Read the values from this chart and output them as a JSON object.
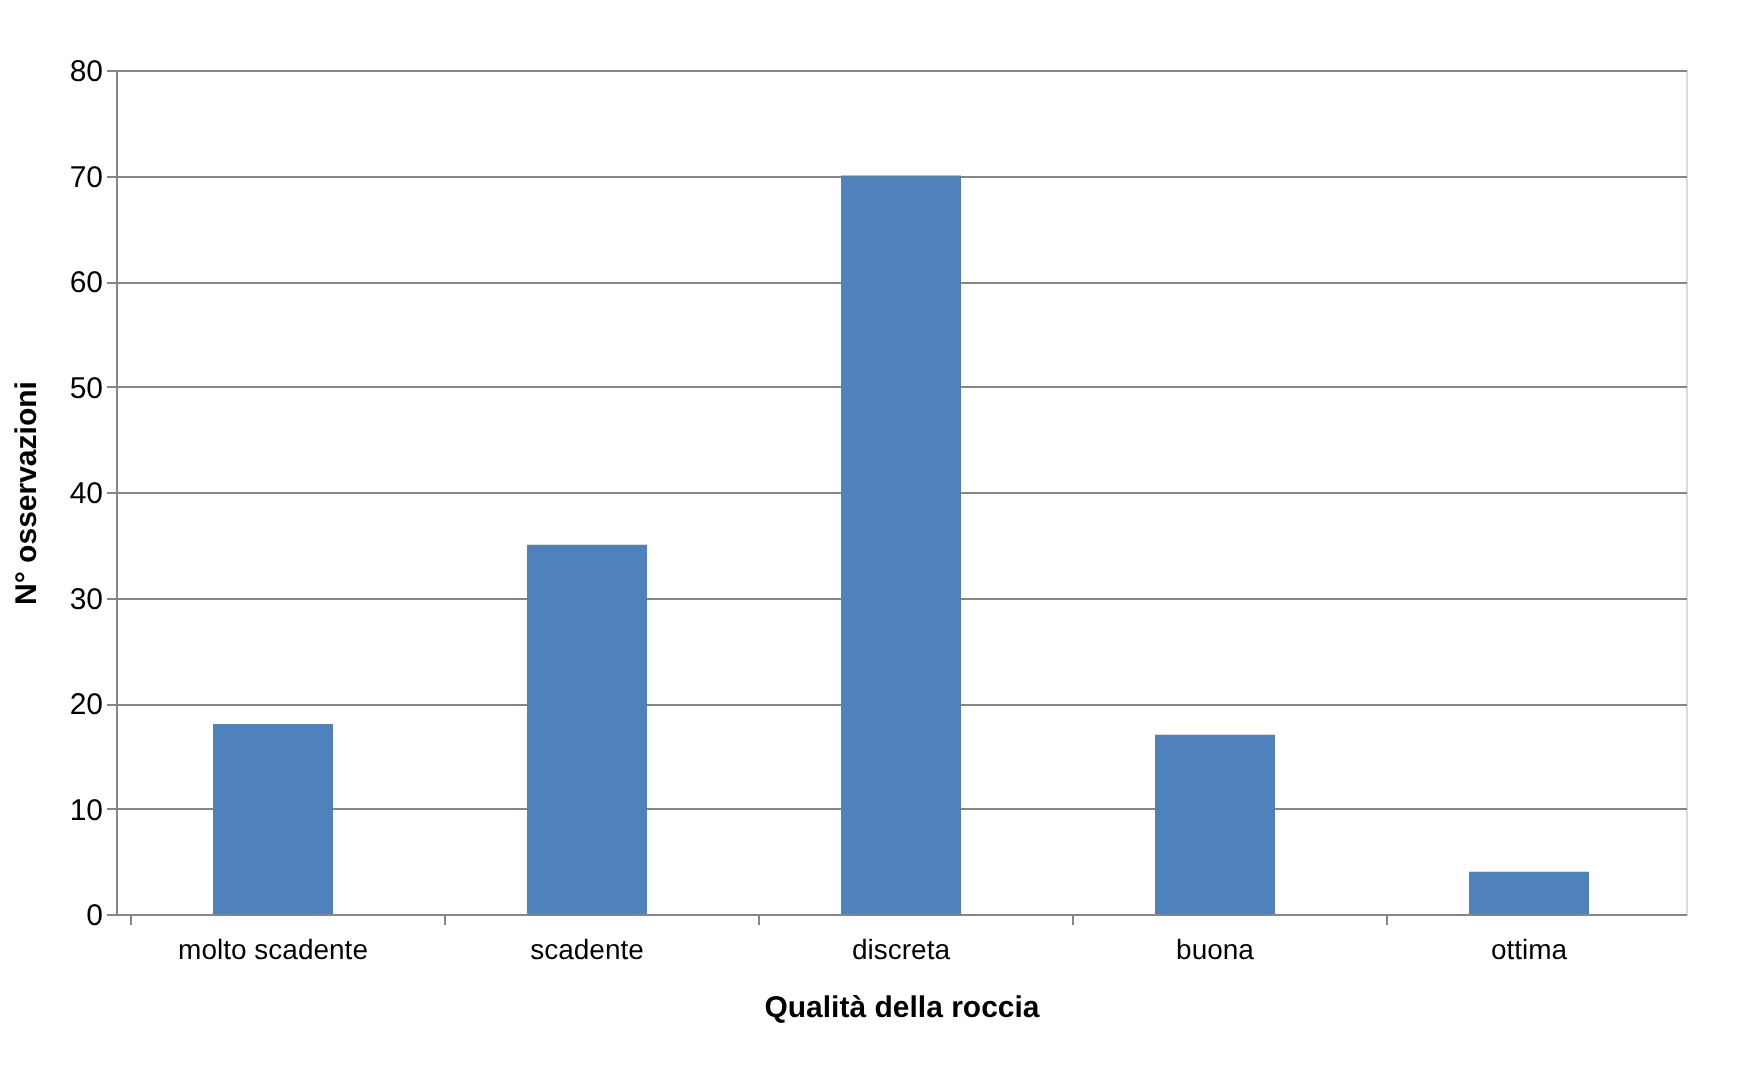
{
  "chart_data": {
    "type": "bar",
    "xlabel": "Qualità della roccia",
    "ylabel": "N° osservazioni",
    "categories": [
      "molto scadente",
      "scadente",
      "discreta",
      "buona",
      "ottima"
    ],
    "values": [
      18,
      35,
      70,
      17,
      4
    ],
    "color": "#4f81bd",
    "ylim": [
      0,
      80
    ],
    "yticks": [
      0,
      10,
      20,
      30,
      40,
      50,
      60,
      70,
      80
    ],
    "grid": "y"
  }
}
